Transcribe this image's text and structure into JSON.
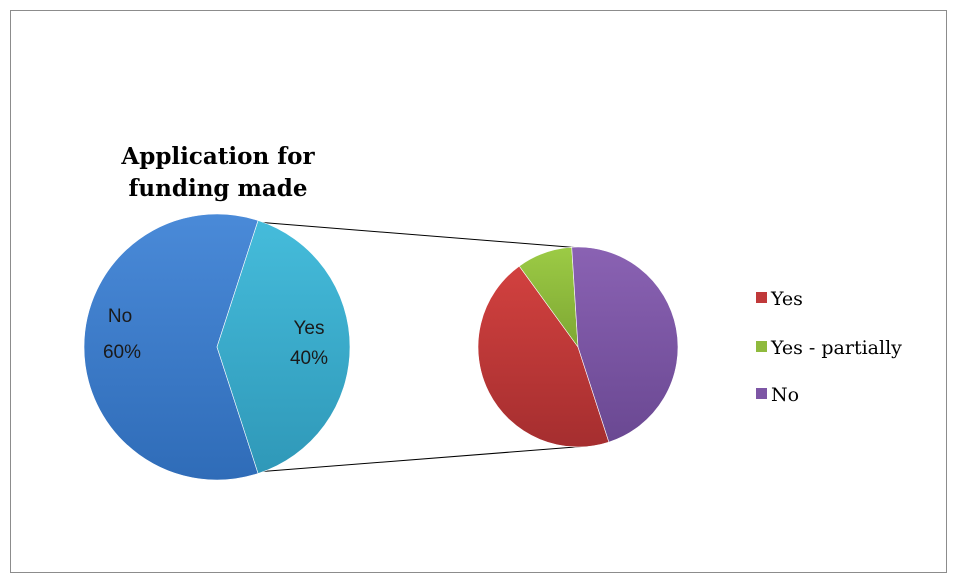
{
  "chart_data": [
    {
      "type": "pie",
      "title_lines": [
        "Application for",
        "funding made"
      ],
      "slices": [
        {
          "label": "No",
          "value": 60,
          "percent_label": "60%",
          "color": "#3f7fcf"
        },
        {
          "label": "Yes",
          "value": 40,
          "percent_label": "40%",
          "color": "#3eb0cf"
        }
      ],
      "exploded_slice": "Yes"
    },
    {
      "type": "pie",
      "slices": [
        {
          "label": "Yes",
          "value": 45,
          "color": "#c0393a"
        },
        {
          "label": "Yes - partially",
          "value": 9,
          "color": "#8fba3d"
        },
        {
          "label": "No",
          "value": 46,
          "color": "#7d56a5"
        }
      ],
      "legend_position": "right"
    }
  ]
}
